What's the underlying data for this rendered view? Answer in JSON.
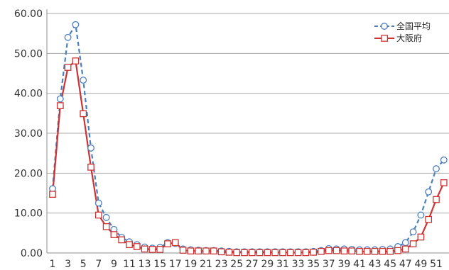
{
  "chart_data": {
    "type": "line",
    "title": "",
    "xlabel": "",
    "ylabel": "",
    "x": [
      1,
      2,
      3,
      4,
      5,
      6,
      7,
      8,
      9,
      10,
      11,
      12,
      13,
      14,
      15,
      16,
      17,
      18,
      19,
      20,
      21,
      22,
      23,
      24,
      25,
      26,
      27,
      28,
      29,
      30,
      31,
      32,
      33,
      34,
      35,
      36,
      37,
      38,
      39,
      40,
      41,
      42,
      43,
      44,
      45,
      46,
      47,
      48,
      49,
      50,
      51,
      52
    ],
    "x_tick_labels": [
      "1",
      "3",
      "5",
      "7",
      "9",
      "11",
      "13",
      "15",
      "17",
      "19",
      "21",
      "23",
      "25",
      "27",
      "29",
      "31",
      "33",
      "35",
      "37",
      "39",
      "41",
      "43",
      "45",
      "47",
      "49",
      "51"
    ],
    "y_tick_labels": [
      "0.00",
      "10.00",
      "20.00",
      "30.00",
      "40.00",
      "50.00",
      "60.00"
    ],
    "ylim": [
      0,
      60
    ],
    "grid": true,
    "legend": "top-right",
    "series": [
      {
        "name": "全国平均",
        "color": "#4a7fc1",
        "style": "dashed",
        "marker": "circle",
        "values": [
          16.1,
          38.6,
          54.0,
          57.2,
          43.3,
          26.3,
          12.5,
          8.9,
          5.9,
          3.9,
          2.8,
          2.1,
          1.5,
          1.2,
          1.4,
          2.6,
          2.4,
          1.0,
          0.8,
          0.7,
          0.6,
          0.6,
          0.5,
          0.4,
          0.3,
          0.3,
          0.3,
          0.3,
          0.3,
          0.3,
          0.3,
          0.3,
          0.3,
          0.3,
          0.4,
          0.6,
          1.1,
          1.0,
          1.0,
          0.9,
          0.8,
          0.8,
          0.8,
          0.9,
          1.0,
          1.6,
          2.6,
          5.3,
          9.5,
          15.3,
          21.1,
          23.3
        ]
      },
      {
        "name": "大阪府",
        "color": "#cc3333",
        "style": "solid",
        "marker": "square",
        "values": [
          14.7,
          36.9,
          46.5,
          48.1,
          34.9,
          21.5,
          9.5,
          6.6,
          4.6,
          3.3,
          2.1,
          1.6,
          1.0,
          0.9,
          0.9,
          2.3,
          2.6,
          0.7,
          0.5,
          0.5,
          0.5,
          0.5,
          0.3,
          0.2,
          0.1,
          0.1,
          0.1,
          0.1,
          0.1,
          0.1,
          0.1,
          0.1,
          0.1,
          0.1,
          0.2,
          0.4,
          0.6,
          0.6,
          0.5,
          0.5,
          0.4,
          0.4,
          0.4,
          0.4,
          0.4,
          0.6,
          1.0,
          2.3,
          4.0,
          8.4,
          13.4,
          17.6
        ]
      }
    ]
  }
}
